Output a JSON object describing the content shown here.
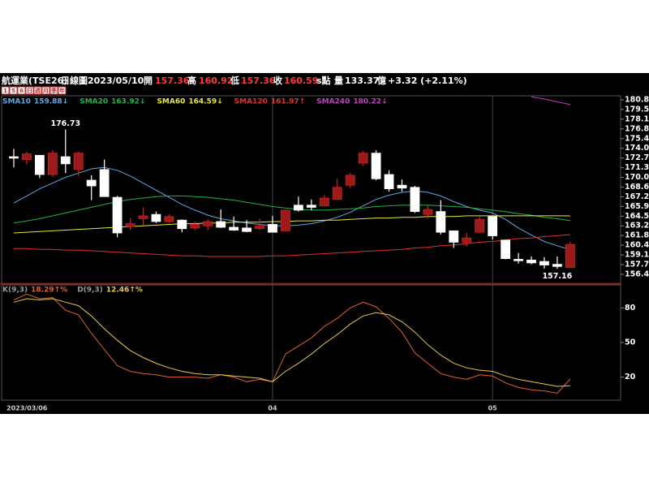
{
  "header": {
    "name": "航運業(TSE26)",
    "period": "日線圖",
    "date": "2023/05/10",
    "open_label": "開",
    "open": 157.36,
    "high_label": "高",
    "high": 160.92,
    "low_label": "低",
    "low": 157.36,
    "close_label": "收",
    "close": 160.59,
    "unit": "s點",
    "volume_label": "量",
    "volume": 133.37,
    "volume_unit": "億",
    "change": "+3.32 (+2.11%)"
  },
  "tabs": [
    "1",
    "5",
    "6",
    "日",
    "週",
    "月",
    "季",
    "年"
  ],
  "chart_data": [
    {
      "type": "candlestick",
      "categories": [
        "2023/03/06",
        null,
        null,
        null,
        null,
        null,
        null,
        null,
        null,
        null,
        null,
        null,
        null,
        null,
        null,
        null,
        null,
        null,
        null,
        null,
        "04",
        null,
        null,
        null,
        null,
        null,
        null,
        null,
        null,
        null,
        null,
        null,
        null,
        null,
        null,
        null,
        null,
        "05",
        null,
        null,
        null,
        null,
        null,
        null
      ],
      "open": [
        172.9,
        172.5,
        173.1,
        170.4,
        172.9,
        171.1,
        169.6,
        171.1,
        167.2,
        163.1,
        164.2,
        164.8,
        163.8,
        164.0,
        162.9,
        163.2,
        163.8,
        163.0,
        162.9,
        162.8,
        163.4,
        162.5,
        166.1,
        166.1,
        166.0,
        166.9,
        168.9,
        172.0,
        173.4,
        170.4,
        168.9,
        168.6,
        164.8,
        165.2,
        162.5,
        160.9,
        162.3,
        164.5,
        161.2,
        158.5,
        158.4,
        158.2,
        157.8,
        157.36
      ],
      "high": [
        174.0,
        173.6,
        173.1,
        173.8,
        176.73,
        173.6,
        170.3,
        172.5,
        167.4,
        164.3,
        165.8,
        165.2,
        164.8,
        164.1,
        163.8,
        164.1,
        165.5,
        164.5,
        164.0,
        164.2,
        164.6,
        165.5,
        167.3,
        166.9,
        167.5,
        169.8,
        170.6,
        173.7,
        173.8,
        171.0,
        169.7,
        168.8,
        166.1,
        166.8,
        162.5,
        162.2,
        164.5,
        164.5,
        161.2,
        159.4,
        158.9,
        158.8,
        158.9,
        160.92
      ],
      "low": [
        171.4,
        171.8,
        169.9,
        170.1,
        170.6,
        170.2,
        166.8,
        167.3,
        161.6,
        162.6,
        163.3,
        163.6,
        163.6,
        162.3,
        162.6,
        162.6,
        162.9,
        162.5,
        162.3,
        162.6,
        162.3,
        162.5,
        165.2,
        165.4,
        165.9,
        166.8,
        168.5,
        171.6,
        169.6,
        168.0,
        168.0,
        165.0,
        164.2,
        162.0,
        160.1,
        160.3,
        162.2,
        161.3,
        158.5,
        157.9,
        157.8,
        157.2,
        157.16,
        157.36
      ],
      "close": [
        172.7,
        173.3,
        170.4,
        173.4,
        171.9,
        173.4,
        168.8,
        167.3,
        162.2,
        163.5,
        164.6,
        163.8,
        164.5,
        162.8,
        163.4,
        163.8,
        163.0,
        162.6,
        162.4,
        163.2,
        162.3,
        165.4,
        165.4,
        165.8,
        167.1,
        168.6,
        170.3,
        173.4,
        169.8,
        168.4,
        168.5,
        165.2,
        165.5,
        162.3,
        160.9,
        161.5,
        164.1,
        161.8,
        158.6,
        158.3,
        158.0,
        157.7,
        157.5,
        160.59
      ],
      "up_color": "#9b1b1b",
      "down_color": "#ffffff",
      "high_label": "176.73",
      "low_label": "157.16",
      "ylim": [
        155.14,
        181.45
      ],
      "yticks": [
        180.88,
        179.52,
        178.16,
        {
          "value": 176.8,
          "label": "176.80"
        },
        175.44,
        174.08,
        172.72,
        171.36,
        {
          "value": 170,
          "label": "170.00"
        },
        168.64,
        167.28,
        165.92,
        164.56,
        {
          "value": 163.2,
          "label": "163.20"
        },
        161.84,
        160.48,
        159.12,
        157.76,
        {
          "value": 156.4,
          "label": "156.40"
        }
      ],
      "series": [
        {
          "name": "SMA10",
          "value_label": "159.88↓",
          "color": "#5fa8e0",
          "values": [
            166.4,
            167.4,
            168.4,
            169.2,
            170.0,
            170.6,
            171.2,
            171.4,
            171.0,
            170.2,
            169.2,
            168.2,
            167.2,
            166.2,
            165.4,
            164.7,
            164.2,
            163.9,
            163.6,
            163.4,
            163.2,
            163.2,
            163.3,
            163.5,
            163.9,
            164.4,
            165.1,
            166.0,
            166.9,
            167.5,
            167.9,
            168.1,
            167.9,
            167.4,
            166.6,
            165.9,
            165.4,
            165.0,
            164.1,
            162.9,
            161.9,
            161.0,
            160.4,
            159.88
          ]
        },
        {
          "name": "SMA20",
          "value_label": "163.92↓",
          "color": "#22b14c",
          "values": [
            163.6,
            163.9,
            164.2,
            164.6,
            165.0,
            165.4,
            165.8,
            166.2,
            166.6,
            166.9,
            167.1,
            167.3,
            167.4,
            167.4,
            167.3,
            167.2,
            167.0,
            166.8,
            166.5,
            166.2,
            165.9,
            165.7,
            165.5,
            165.4,
            165.4,
            165.5,
            165.6,
            165.7,
            165.9,
            166.0,
            166.1,
            166.1,
            166.1,
            166.0,
            165.9,
            165.8,
            165.6,
            165.4,
            165.2,
            164.9,
            164.7,
            164.4,
            164.2,
            163.92
          ]
        },
        {
          "name": "SMA60",
          "value_label": "164.59↓",
          "color": "#e8e83a",
          "values": [
            162.2,
            162.3,
            162.4,
            162.5,
            162.6,
            162.7,
            162.8,
            162.9,
            163.0,
            163.1,
            163.2,
            163.3,
            163.4,
            163.5,
            163.5,
            163.6,
            163.6,
            163.7,
            163.7,
            163.7,
            163.8,
            163.8,
            163.9,
            163.9,
            164.0,
            164.0,
            164.1,
            164.2,
            164.3,
            164.3,
            164.4,
            164.4,
            164.5,
            164.5,
            164.5,
            164.6,
            164.6,
            164.6,
            164.6,
            164.6,
            164.6,
            164.6,
            164.6,
            164.59
          ]
        },
        {
          "name": "SMA120",
          "value_label": "161.97↑",
          "color": "#e03030",
          "values": [
            160.0,
            160.0,
            159.9,
            159.9,
            159.8,
            159.8,
            159.7,
            159.6,
            159.5,
            159.4,
            159.3,
            159.2,
            159.1,
            159.0,
            159.0,
            158.9,
            158.9,
            158.9,
            158.9,
            158.9,
            159.0,
            159.0,
            159.1,
            159.2,
            159.3,
            159.4,
            159.5,
            159.6,
            159.7,
            159.8,
            159.9,
            160.1,
            160.2,
            160.4,
            160.5,
            160.7,
            160.9,
            161.0,
            161.2,
            161.4,
            161.5,
            161.7,
            161.8,
            161.97
          ]
        },
        {
          "name": "SMA240",
          "value_label": "180.22↓",
          "color": "#c040c0",
          "values": [
            null,
            null,
            null,
            null,
            null,
            null,
            null,
            null,
            null,
            null,
            null,
            null,
            null,
            null,
            null,
            null,
            null,
            null,
            null,
            null,
            null,
            null,
            null,
            null,
            null,
            null,
            null,
            null,
            null,
            null,
            null,
            null,
            null,
            null,
            null,
            null,
            null,
            null,
            null,
            null,
            181.3,
            181.0,
            180.6,
            180.22
          ]
        }
      ]
    },
    {
      "type": "line",
      "ylim": [
        0,
        100
      ],
      "yticks": [
        80,
        50,
        20
      ],
      "series": [
        {
          "name": "K(9,3)",
          "value_label": "18.29↑%",
          "color": "#e0602a",
          "values": [
            87,
            92,
            88,
            89,
            78,
            74,
            58,
            44,
            30,
            25,
            23,
            22,
            20,
            20,
            20,
            19,
            22,
            20,
            16,
            18,
            16,
            40,
            47,
            54,
            64,
            71,
            80,
            85,
            81,
            71,
            59,
            41,
            32,
            23,
            20,
            18,
            22,
            21,
            15,
            11,
            9,
            8,
            6,
            18.29
          ]
        },
        {
          "name": "D(9,3)",
          "value_label": "12.46↑%",
          "color": "#e6c84a",
          "values": [
            85,
            88,
            87,
            88,
            85,
            82,
            73,
            62,
            52,
            43,
            37,
            32,
            28,
            25,
            23,
            22,
            22,
            21,
            20,
            19,
            16,
            25,
            32,
            40,
            49,
            57,
            66,
            73,
            76,
            74,
            68,
            59,
            48,
            39,
            32,
            28,
            26,
            25,
            21,
            18,
            16,
            14,
            12,
            12.46
          ]
        }
      ]
    }
  ]
}
